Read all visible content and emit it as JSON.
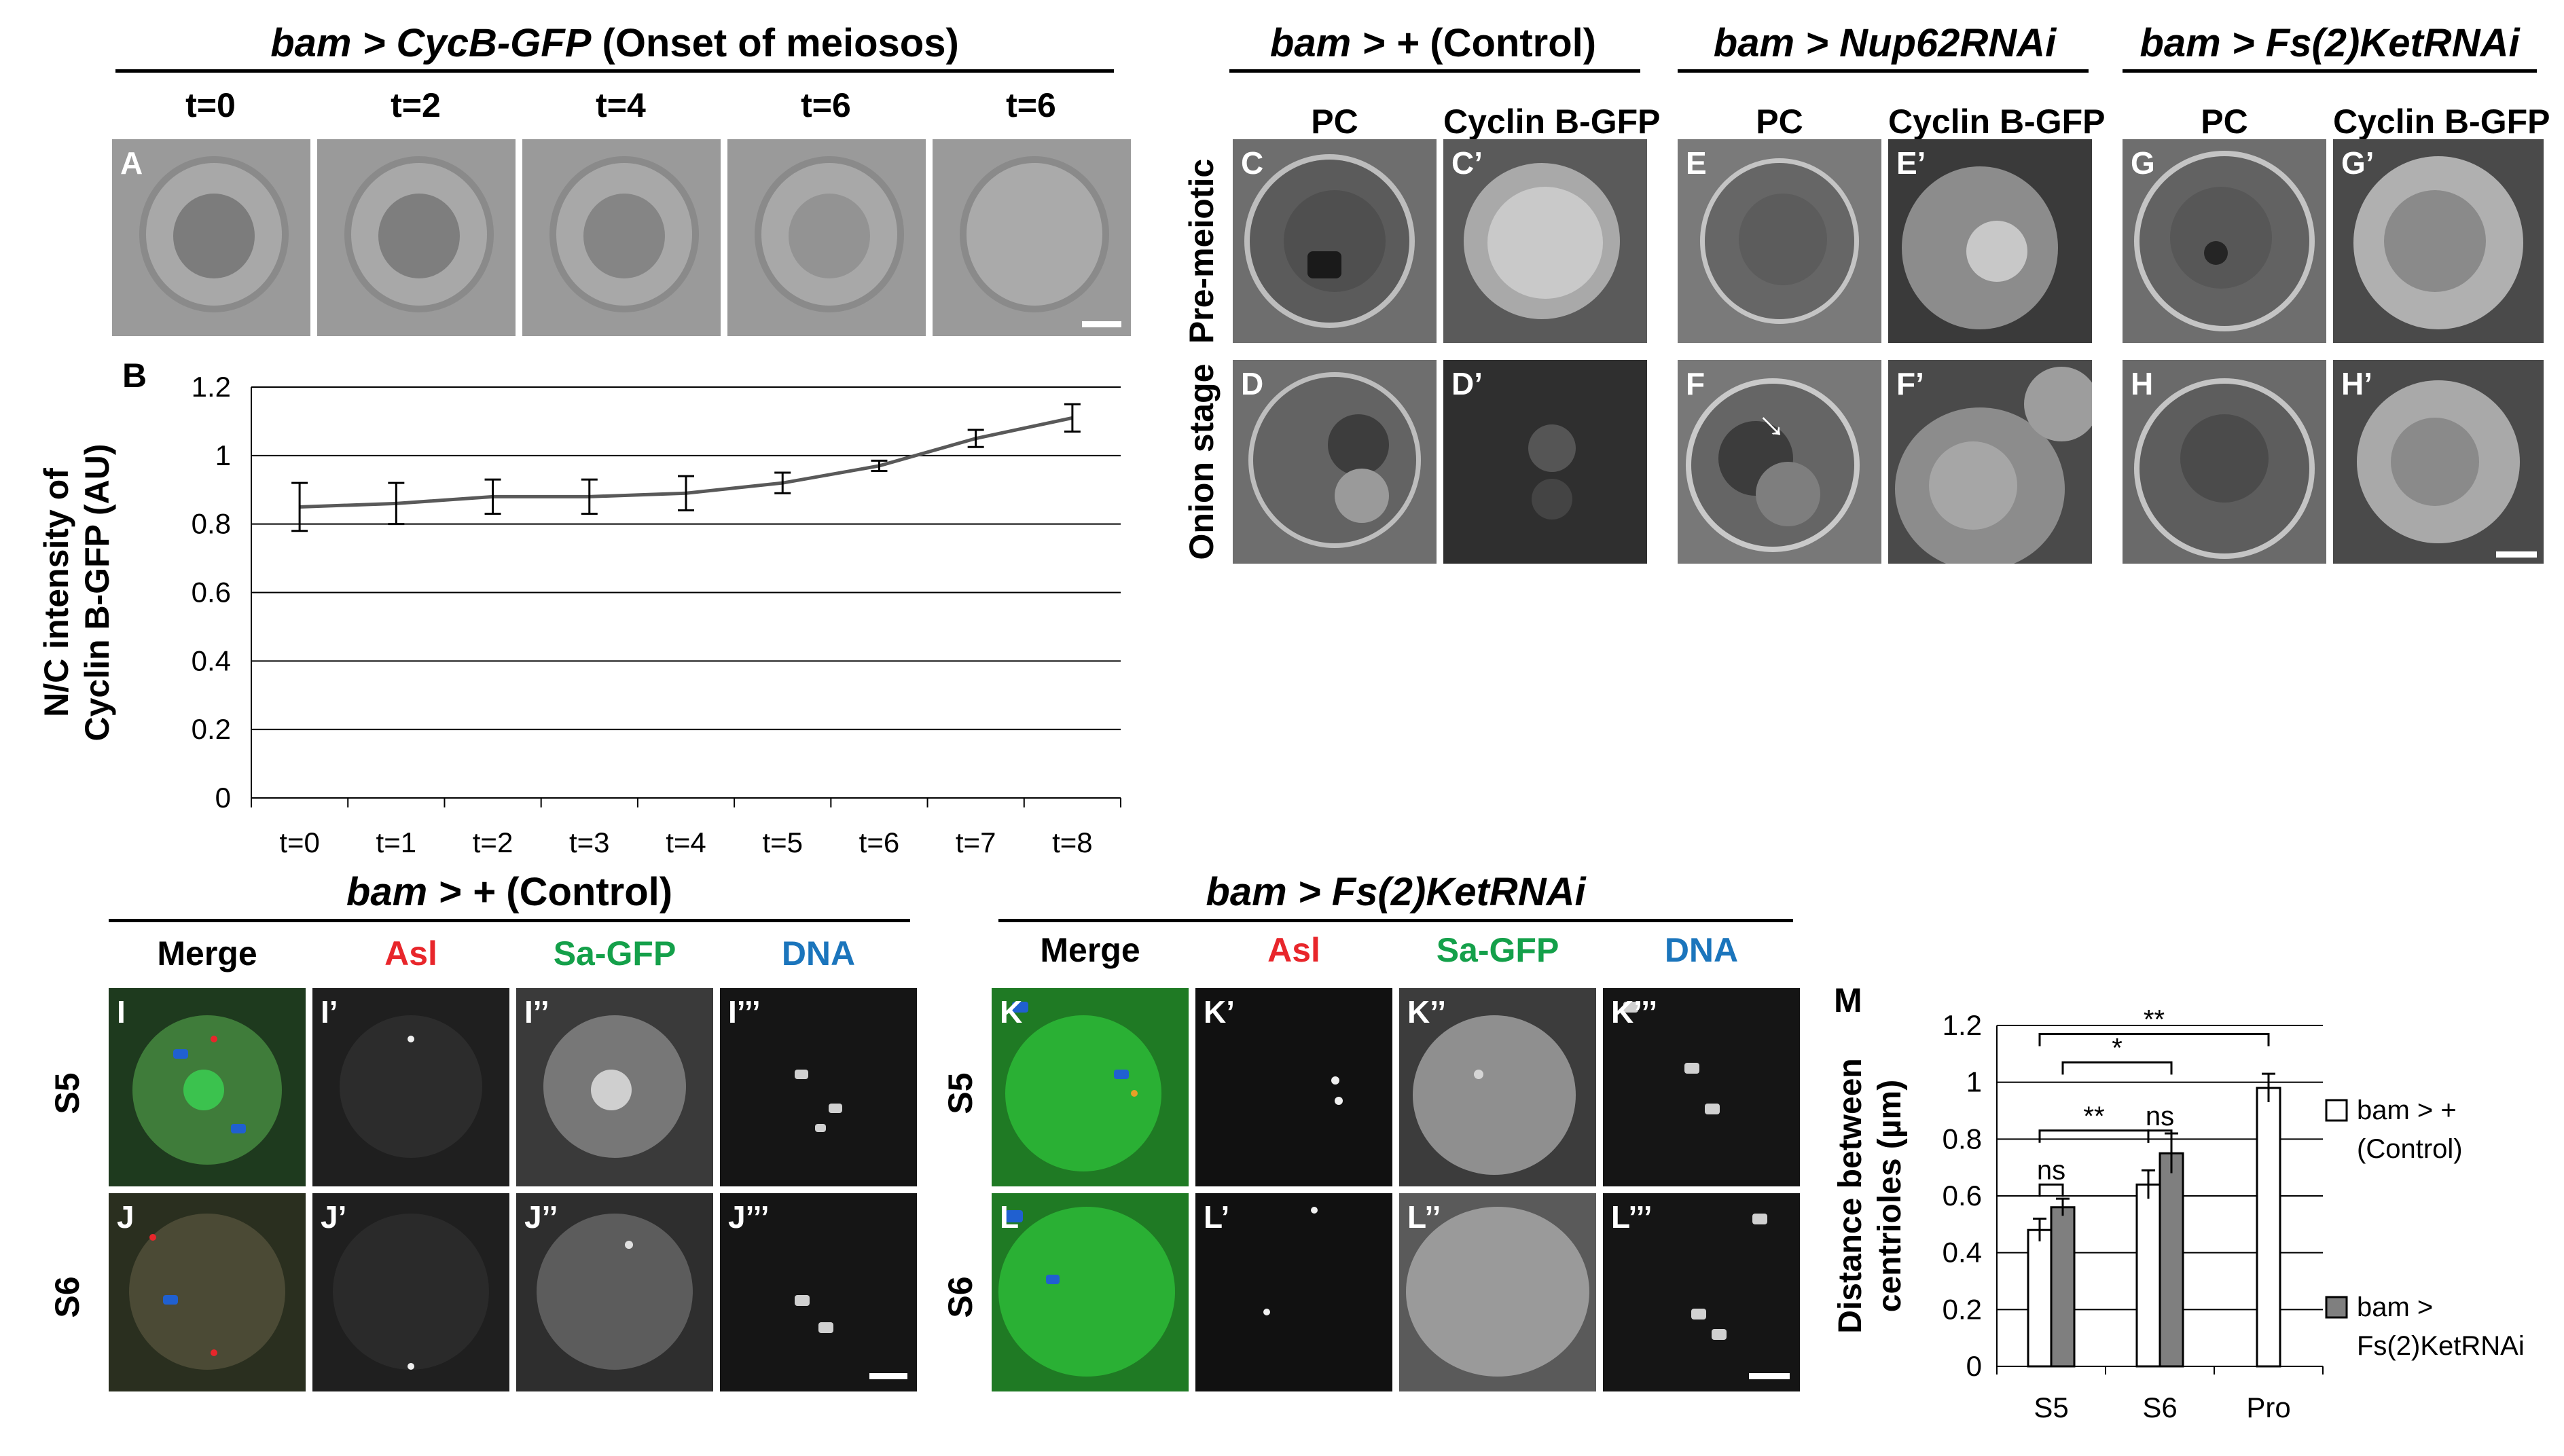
{
  "figure": {
    "top_left": {
      "header_prefix": "bam > CycB-GFP",
      "header_suffix": " (Onset of meiosos)",
      "time_labels": [
        "t=0",
        "t=2",
        "t=4",
        "t=6",
        "t=6"
      ],
      "panel_label": "A"
    },
    "top_right": {
      "groups": [
        {
          "prefix": "bam > +",
          "suffix": " (Control)",
          "italic_suffix": false
        },
        {
          "prefix": "bam > Nup62RNAi",
          "suffix": "",
          "italic_suffix": false
        },
        {
          "prefix": "bam > Fs(2)KetRNAi",
          "suffix": "",
          "italic_suffix": false
        }
      ],
      "column_labels": [
        "PC",
        "Cyclin B-GFP",
        "PC",
        "Cyclin B-GFP",
        "PC",
        "Cyclin B-GFP"
      ],
      "row_labels": [
        "Pre-meiotic",
        "Onion stage"
      ],
      "panel_labels_row1": [
        "C",
        "C’",
        "E",
        "E’",
        "G",
        "G’"
      ],
      "panel_labels_row2": [
        "D",
        "D’",
        "F",
        "F’",
        "H",
        "H’"
      ]
    },
    "bottom_left": {
      "header_prefix": "bam > +",
      "header_suffix": " (Control)",
      "column_labels": [
        "Merge",
        "Asl",
        "Sa-GFP",
        "DNA"
      ],
      "row_labels": [
        "S5",
        "S6"
      ],
      "panel_labels_row1": [
        "I",
        "I’",
        "I’’",
        "I’’’"
      ],
      "panel_labels_row2": [
        "J",
        "J’",
        "J’’",
        "J’’’"
      ]
    },
    "bottom_mid": {
      "header_prefix": "bam > Fs(2)KetRNAi",
      "column_labels": [
        "Merge",
        "Asl",
        "Sa-GFP",
        "DNA"
      ],
      "row_labels": [
        "S5",
        "S6"
      ],
      "panel_labels_row1": [
        "K",
        "K’",
        "K’’",
        "K’’’"
      ],
      "panel_labels_row2": [
        "L",
        "L’",
        "L’’",
        "L’’’"
      ]
    },
    "colors": {
      "asl": "#e8262b",
      "sa_gfp": "#14a04a",
      "dna": "#1b75bc",
      "line_series": "#595959",
      "control_bar": "#ffffff",
      "ket_bar": "#7f7f7f"
    }
  },
  "chart_data": [
    {
      "panel_label": "B",
      "type": "line",
      "ylabel_line1": "N/C intensity of",
      "ylabel_line2": "Cyclin B-GFP (AU)",
      "categories": [
        "t=0",
        "t=1",
        "t=2",
        "t=3",
        "t=4",
        "t=5",
        "t=6",
        "t=7",
        "t=8"
      ],
      "values": [
        0.85,
        0.86,
        0.88,
        0.88,
        0.89,
        0.92,
        0.97,
        1.05,
        1.11
      ],
      "errors": [
        0.07,
        0.06,
        0.05,
        0.05,
        0.05,
        0.03,
        0.015,
        0.025,
        0.04
      ],
      "ylim": [
        0,
        1.2
      ],
      "yticks": [
        "0",
        "0.2",
        "0.4",
        "0.6",
        "0.8",
        "1",
        "1.2"
      ],
      "grid": true
    },
    {
      "panel_label": "M",
      "type": "bar",
      "ylabel_line1": "Distance between",
      "ylabel_line2": "centrioles  (µm)",
      "categories": [
        "S5",
        "S6",
        "Pro"
      ],
      "series": [
        {
          "name": "bam > + (Control)",
          "legend_line1": "bam > +",
          "legend_line2": "(Control)",
          "values": [
            0.48,
            0.64,
            0.98
          ],
          "errors": [
            0.04,
            0.05,
            0.05
          ]
        },
        {
          "name": "bam > Fs(2)KetRNAi",
          "legend_line1": "bam >",
          "legend_line2": "Fs(2)KetRNAi",
          "values": [
            0.56,
            0.75,
            null
          ],
          "errors": [
            0.03,
            0.07,
            null
          ]
        }
      ],
      "ylim": [
        0,
        1.2
      ],
      "yticks": [
        "0",
        "0.2",
        "0.4",
        "0.6",
        "0.8",
        "1",
        "1.2"
      ],
      "significance": [
        "ns",
        "ns",
        "**",
        "*",
        "**"
      ],
      "grid": true
    }
  ]
}
